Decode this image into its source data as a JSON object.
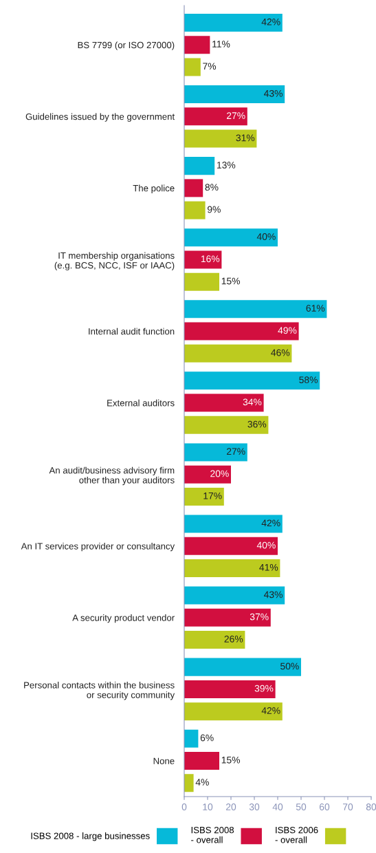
{
  "chart_data": {
    "type": "bar",
    "orientation": "horizontal",
    "categories": [
      "BS 7799 (or ISO 27000)",
      "Guidelines issued by the government",
      "The police",
      "IT membership organisations\n(e.g. BCS, NCC, ISF or IAAC)",
      "Internal audit function",
      "External auditors",
      "An audit/business advisory firm\nother than your auditors",
      "An IT services provider or consultancy",
      "A security product vendor",
      "Personal contacts within the business\nor security community",
      "None"
    ],
    "series": [
      {
        "name": "ISBS 2008 - large businesses",
        "color": "#06b9d9",
        "values": [
          42,
          43,
          13,
          40,
          61,
          58,
          27,
          42,
          43,
          50,
          6
        ],
        "value_labels": [
          "42%",
          "43%",
          "13%",
          "40%",
          "61%",
          "58%",
          "27%",
          "42%",
          "43%",
          "50%",
          "6%"
        ]
      },
      {
        "name": "ISBS 2008\n- overall",
        "color": "#d20f3f",
        "values": [
          11,
          27,
          8,
          16,
          49,
          34,
          20,
          40,
          37,
          39,
          15
        ],
        "value_labels": [
          "11%",
          "27%",
          "8%",
          "16%",
          "49%",
          "34%",
          "20%",
          "40%",
          "37%",
          "39%",
          "15%"
        ]
      },
      {
        "name": "ISBS 2006\n- overall",
        "color": "#bccb1f",
        "values": [
          7,
          31,
          9,
          15,
          46,
          36,
          17,
          41,
          26,
          42,
          4
        ],
        "value_labels": [
          "7%",
          "31%",
          "9%",
          "15%",
          "46%",
          "36%",
          "17%",
          "41%",
          "26%",
          "42%",
          "4%"
        ]
      }
    ],
    "xlim": [
      0,
      80
    ],
    "xticks": [
      0,
      10,
      20,
      30,
      40,
      50,
      60,
      70,
      80
    ],
    "grid": false,
    "legend": "bottom"
  }
}
